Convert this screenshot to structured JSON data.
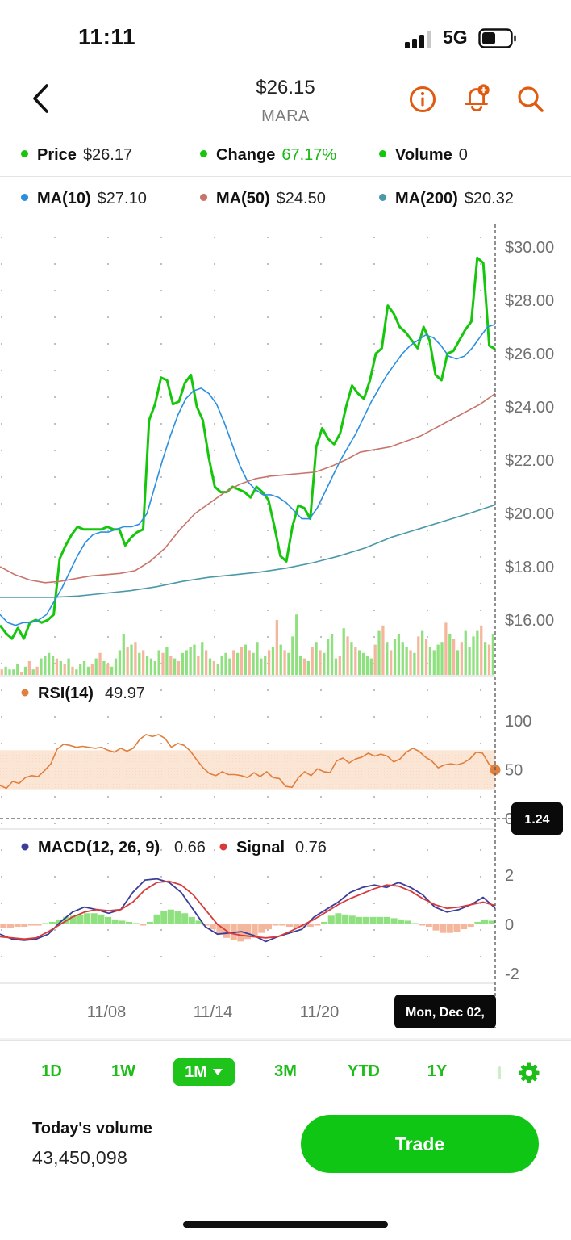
{
  "status_bar": {
    "time": "11:11",
    "network": "5G"
  },
  "header": {
    "price": "$26.15",
    "ticker": "MARA"
  },
  "legend_top": [
    {
      "label": "Price",
      "value": "$26.17",
      "dot_color": "#16c60c",
      "value_color": "#222222"
    },
    {
      "label": "Change",
      "value": "67.17%",
      "dot_color": "#16c60c",
      "value_color": "#19b814"
    },
    {
      "label": "Volume",
      "value": "0",
      "dot_color": "#16c60c",
      "value_color": "#222222"
    }
  ],
  "legend_ma": [
    {
      "label": "MA(10)",
      "value": "$27.10",
      "dot_color": "#2b8fe0"
    },
    {
      "label": "MA(50)",
      "value": "$24.50",
      "dot_color": "#c8746a"
    },
    {
      "label": "MA(200)",
      "value": "$20.32",
      "dot_color": "#4a98a8"
    }
  ],
  "rsi": {
    "label": "RSI(14)",
    "value": "49.97",
    "color": "#e07f3e"
  },
  "macd": {
    "label": "MACD(12, 26, 9)",
    "value": "0.66",
    "signal_label": "Signal",
    "signal_value": "0.76",
    "macd_color": "#3a3d9a",
    "signal_color": "#d83a3a"
  },
  "crosshair": {
    "value_label": "1.24",
    "date_label": "Mon, Dec 02,"
  },
  "chart_data": [
    {
      "type": "line",
      "name": "price",
      "yticks": [
        "$30.00",
        "$28.00",
        "$26.00",
        "$24.00",
        "$22.00",
        "$20.00",
        "$18.00",
        "$16.00"
      ],
      "xticks": [
        "11/08",
        "11/14",
        "11/20"
      ],
      "ylim": [
        14.1,
        31.0
      ],
      "series": [
        {
          "name": "Price",
          "color": "#16c60c",
          "values": [
            15.8,
            15.5,
            15.3,
            15.7,
            15.3,
            15.9,
            16.0,
            15.9,
            16.0,
            16.2,
            18.3,
            18.8,
            19.2,
            19.5,
            19.4,
            19.4,
            19.4,
            19.4,
            19.5,
            19.4,
            19.4,
            18.8,
            19.1,
            19.3,
            19.4,
            23.5,
            24.1,
            25.1,
            25.0,
            24.1,
            24.2,
            24.9,
            25.2,
            24.0,
            23.5,
            22.1,
            21.0,
            20.8,
            20.8,
            21.0,
            20.9,
            20.8,
            20.6,
            21.0,
            20.8,
            20.5,
            19.5,
            18.4,
            18.2,
            19.5,
            20.3,
            20.2,
            19.8,
            22.5,
            23.2,
            22.8,
            22.6,
            23.0,
            24.0,
            24.8,
            24.5,
            24.3,
            25.0,
            26.0,
            26.2,
            27.8,
            27.5,
            27.0,
            26.8,
            26.5,
            26.2,
            27.0,
            26.5,
            25.2,
            25.0,
            26.0,
            26.1,
            26.5,
            26.9,
            27.2,
            29.6,
            29.4,
            26.3,
            26.17
          ]
        },
        {
          "name": "MA(10)",
          "color": "#2b8fe0",
          "values": [
            16.2,
            15.9,
            15.8,
            15.9,
            15.9,
            16.0,
            16.2,
            16.7,
            17.2,
            17.8,
            18.4,
            18.9,
            19.2,
            19.3,
            19.3,
            19.4,
            19.5,
            19.5,
            19.6,
            20.0,
            21.0,
            22.0,
            22.9,
            23.7,
            24.3,
            24.6,
            24.7,
            24.5,
            24.1,
            23.4,
            22.6,
            21.8,
            21.2,
            20.9,
            20.7,
            20.7,
            20.6,
            20.4,
            20.1,
            19.8,
            19.8,
            20.2,
            20.8,
            21.4,
            22.0,
            22.5,
            23.0,
            23.6,
            24.2,
            24.7,
            25.2,
            25.6,
            26.0,
            26.3,
            26.5,
            26.7,
            26.6,
            26.3,
            25.9,
            25.8,
            25.9,
            26.2,
            26.6,
            27.0,
            27.1
          ]
        },
        {
          "name": "MA(50)",
          "color": "#c8746a",
          "values": [
            18.0,
            17.7,
            17.5,
            17.4,
            17.45,
            17.55,
            17.65,
            17.7,
            17.75,
            17.85,
            18.2,
            18.7,
            19.4,
            20.0,
            20.4,
            20.8,
            21.1,
            21.3,
            21.4,
            21.45,
            21.5,
            21.55,
            21.75,
            22.0,
            22.3,
            22.4,
            22.5,
            22.7,
            22.9,
            23.2,
            23.5,
            23.8,
            24.1,
            24.5
          ]
        },
        {
          "name": "MA(200)",
          "color": "#4a98a8",
          "values": [
            16.85,
            16.85,
            16.85,
            16.9,
            17.0,
            17.1,
            17.25,
            17.45,
            17.6,
            17.7,
            17.8,
            17.95,
            18.15,
            18.4,
            18.7,
            19.1,
            19.4,
            19.7,
            20.0,
            20.32
          ]
        }
      ],
      "volume_bars": {
        "up_color": "#8fe07f",
        "down_color": "#f4b69c",
        "values": [
          2,
          3,
          2,
          2,
          4,
          1,
          3,
          5,
          2,
          3,
          6,
          7,
          8,
          7,
          6,
          5,
          4,
          6,
          3,
          2,
          4,
          5,
          3,
          4,
          6,
          8,
          5,
          4,
          3,
          6,
          9,
          15,
          10,
          11,
          12,
          8,
          9,
          7,
          6,
          5,
          9,
          8,
          10,
          7,
          6,
          5,
          8,
          9,
          10,
          11,
          7,
          12,
          9,
          6,
          5,
          4,
          7,
          8,
          6,
          9,
          8,
          10,
          11,
          9,
          8,
          12,
          6,
          7,
          9,
          10,
          20,
          11,
          9,
          8,
          14,
          22,
          7,
          6,
          5,
          10,
          12,
          9,
          8,
          13,
          15,
          6,
          7,
          17,
          14,
          12,
          10,
          9,
          8,
          7,
          6,
          11,
          16,
          18,
          12,
          9,
          13,
          15,
          12,
          10,
          9,
          8,
          14,
          16,
          13,
          10,
          9,
          11,
          12,
          19,
          15,
          13,
          9,
          12,
          16,
          10,
          14,
          16,
          18,
          12,
          11,
          15
        ]
      }
    },
    {
      "type": "line",
      "name": "RSI(14)",
      "yticks": [
        "100",
        "50",
        "0"
      ],
      "ylim": [
        0,
        100
      ],
      "overbought_band": [
        30,
        70
      ],
      "values": [
        34,
        31,
        38,
        36,
        42,
        44,
        43,
        49,
        56,
        71,
        76,
        75,
        73,
        74,
        73,
        72,
        73,
        70,
        68,
        72,
        69,
        72,
        81,
        86,
        84,
        86,
        82,
        73,
        77,
        75,
        69,
        60,
        52,
        46,
        44,
        48,
        45,
        45,
        44,
        42,
        47,
        43,
        48,
        42,
        41,
        33,
        32,
        42,
        48,
        44,
        51,
        48,
        47,
        59,
        62,
        57,
        61,
        63,
        67,
        64,
        66,
        64,
        58,
        61,
        68,
        72,
        69,
        63,
        59,
        52,
        55,
        56,
        55,
        57,
        61,
        68,
        67,
        56,
        49.97
      ]
    },
    {
      "type": "line",
      "name": "MACD",
      "yticks": [
        "2",
        "0",
        "-2"
      ],
      "ylim": [
        -2.6,
        2.6
      ],
      "series": [
        {
          "name": "MACD(12, 26, 9)",
          "color": "#3a3d9a",
          "values": [
            -0.4,
            -0.6,
            -0.65,
            -0.6,
            -0.4,
            0.1,
            0.5,
            0.7,
            0.6,
            0.45,
            0.6,
            1.3,
            1.8,
            1.85,
            1.7,
            1.3,
            0.6,
            -0.1,
            -0.4,
            -0.35,
            -0.3,
            -0.45,
            -0.7,
            -0.5,
            -0.35,
            -0.2,
            0.3,
            0.6,
            0.9,
            1.3,
            1.5,
            1.6,
            1.5,
            1.7,
            1.5,
            1.2,
            0.7,
            0.5,
            0.6,
            0.8,
            1.1,
            0.66
          ]
        },
        {
          "name": "Signal",
          "color": "#d83a3a",
          "values": [
            -0.5,
            -0.55,
            -0.6,
            -0.55,
            -0.3,
            0.0,
            0.3,
            0.5,
            0.6,
            0.55,
            0.6,
            0.9,
            1.4,
            1.7,
            1.75,
            1.6,
            1.2,
            0.6,
            0.0,
            -0.35,
            -0.45,
            -0.5,
            -0.55,
            -0.5,
            -0.3,
            -0.05,
            0.2,
            0.5,
            0.8,
            1.05,
            1.25,
            1.45,
            1.6,
            1.55,
            1.35,
            1.05,
            0.8,
            0.65,
            0.7,
            0.8,
            0.9,
            0.76
          ]
        }
      ],
      "histogram": {
        "pos_color": "#8fe07f",
        "neg_color": "#f4b69c",
        "values": [
          -0.15,
          -0.15,
          -0.1,
          -0.1,
          -0.05,
          -0.05,
          0.05,
          0.1,
          0.2,
          0.3,
          0.35,
          0.4,
          0.45,
          0.45,
          0.4,
          0.3,
          0.2,
          0.15,
          0.1,
          0.05,
          -0.05,
          0.1,
          0.4,
          0.55,
          0.6,
          0.55,
          0.45,
          0.3,
          0.15,
          -0.05,
          -0.2,
          -0.4,
          -0.55,
          -0.65,
          -0.7,
          -0.6,
          -0.5,
          -0.35,
          -0.2,
          -0.05,
          -0.05,
          -0.1,
          -0.15,
          -0.1,
          -0.1,
          -0.05,
          0.1,
          0.35,
          0.45,
          0.4,
          0.35,
          0.3,
          0.3,
          0.3,
          0.3,
          0.3,
          0.25,
          0.2,
          0.15,
          0.05,
          -0.05,
          -0.1,
          -0.25,
          -0.35,
          -0.35,
          -0.3,
          -0.2,
          -0.1,
          0.1,
          0.2,
          0.15
        ]
      }
    }
  ],
  "date_ticks": [
    "11/08",
    "11/14",
    "11/20"
  ],
  "ranges": [
    "1D",
    "1W",
    "1M",
    "3M",
    "YTD",
    "1Y"
  ],
  "selected_range": "1M",
  "todays_volume": {
    "label": "Today's volume",
    "value": "43,450,098"
  },
  "trade_button": "Trade",
  "icons": [
    "back-chevron-icon",
    "info-icon",
    "alert-bell-plus-icon",
    "search-icon",
    "gear-icon"
  ],
  "accent_color": "#16c60c"
}
